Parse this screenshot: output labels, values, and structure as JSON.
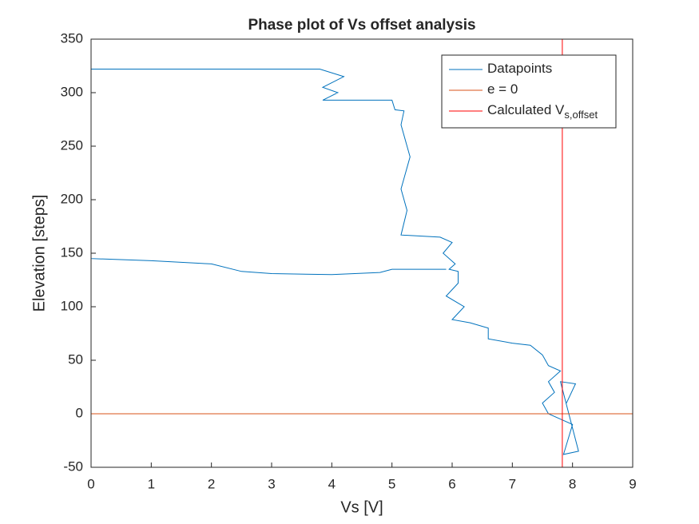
{
  "chart_data": {
    "type": "line",
    "title": "Phase plot of Vs offset analysis",
    "x_label": "Vs [V]",
    "y_label": "Elevation [steps]",
    "xlim": [
      0,
      9
    ],
    "xticks": [
      0,
      1,
      2,
      3,
      4,
      5,
      6,
      7,
      8,
      9
    ],
    "ylim": [
      -50,
      350
    ],
    "yticks": [
      -50,
      0,
      50,
      100,
      150,
      200,
      250,
      300,
      350
    ],
    "grid": false,
    "legend": "top-right",
    "series": [
      {
        "name": "Datapoints",
        "color": "#0072bd",
        "x": [
          7.9,
          8.05,
          7.8,
          8.1,
          7.85,
          8.0,
          7.8,
          7.6,
          7.5,
          7.7,
          7.6,
          7.8,
          7.6,
          7.5,
          7.3,
          7.0,
          6.6,
          6.6,
          6.3,
          6.0,
          6.2,
          5.9,
          6.1,
          6.1,
          5.95,
          6.05,
          5.85,
          6.0,
          5.8,
          5.15,
          5.25,
          5.15,
          5.3,
          5.15,
          5.2,
          5.05,
          5.0,
          3.85,
          4.1,
          3.85,
          4.2,
          3.8,
          0,
          0,
          1,
          2,
          2.5,
          3,
          4,
          4.8,
          5,
          5.9
        ],
        "values": [
          10,
          28,
          30,
          -35,
          -38,
          -10,
          -5,
          0,
          10,
          20,
          30,
          40,
          45,
          55,
          64,
          66,
          70,
          80,
          85,
          88,
          100,
          110,
          122,
          133,
          135,
          140,
          150,
          160,
          165,
          167,
          190,
          210,
          240,
          270,
          283,
          284,
          293,
          293,
          300,
          305,
          315,
          322,
          322,
          145,
          143,
          140,
          133,
          131,
          130,
          132,
          135,
          135
        ]
      },
      {
        "name": "e = 0",
        "color": "#d95319",
        "x": [
          0,
          9
        ],
        "values": [
          0,
          0
        ]
      },
      {
        "name": "Calculated V",
        "subscript": "s,offset",
        "color": "#ff0000",
        "x": [
          7.83,
          7.83
        ],
        "values": [
          -50,
          350
        ]
      }
    ]
  }
}
